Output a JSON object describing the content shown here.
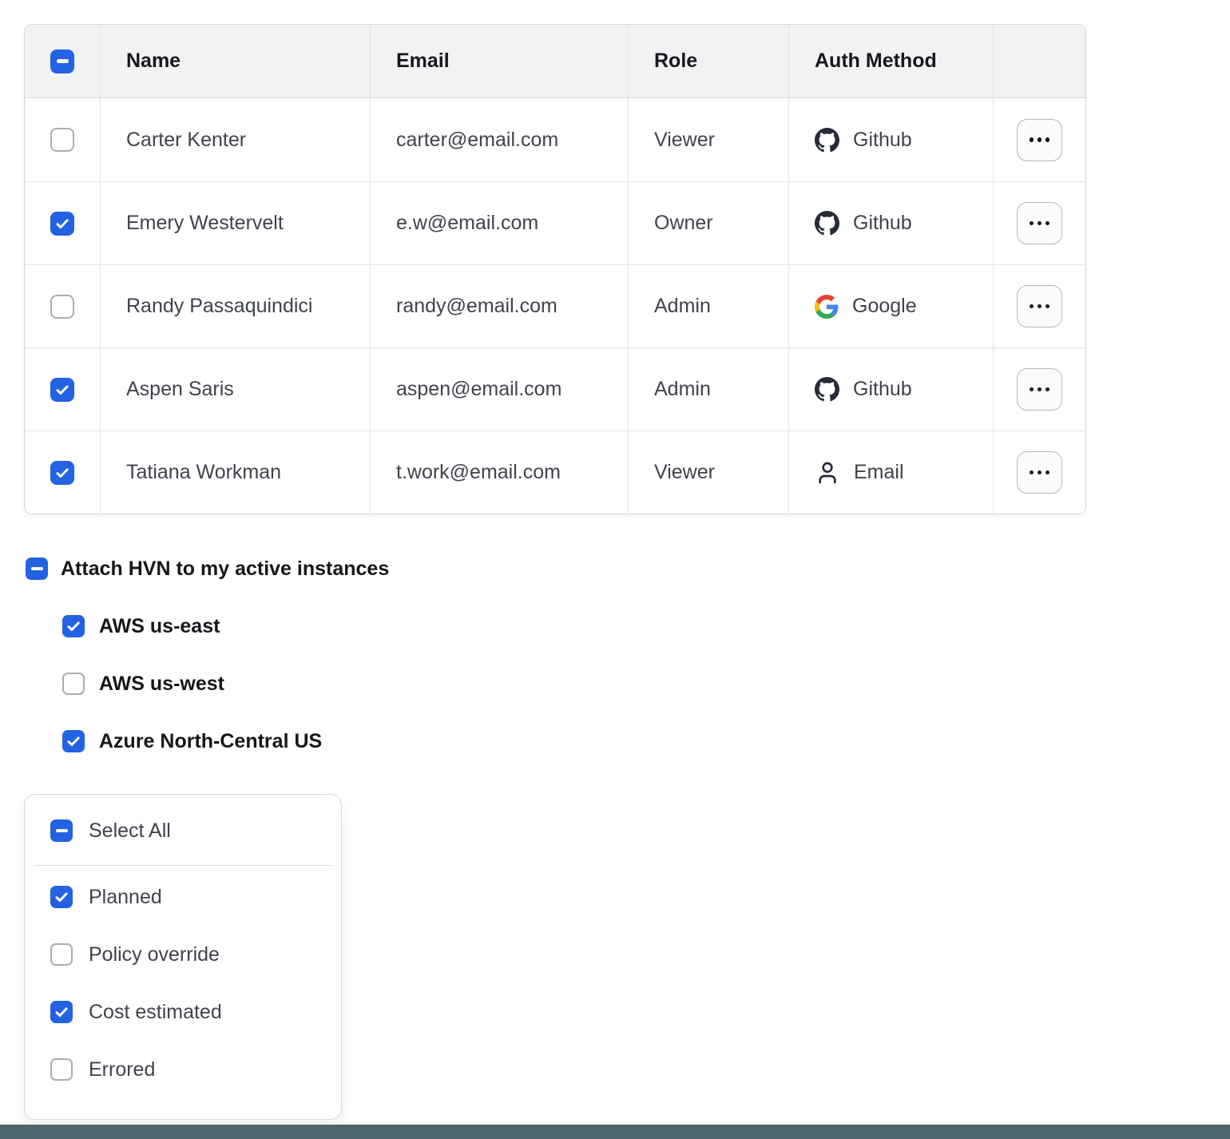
{
  "table": {
    "header_checkbox_state": "indeterminate",
    "columns": {
      "name": "Name",
      "email": "Email",
      "role": "Role",
      "auth": "Auth Method"
    },
    "rows": [
      {
        "checked": false,
        "name": "Carter Kenter",
        "email": "carter@email.com",
        "role": "Viewer",
        "auth_method": "Github",
        "auth_icon": "github-icon"
      },
      {
        "checked": true,
        "name": "Emery Westervelt",
        "email": "e.w@email.com",
        "role": "Owner",
        "auth_method": "Github",
        "auth_icon": "github-icon"
      },
      {
        "checked": false,
        "name": "Randy Passaquindici",
        "email": "randy@email.com",
        "role": "Admin",
        "auth_method": "Google",
        "auth_icon": "google-icon"
      },
      {
        "checked": true,
        "name": "Aspen Saris",
        "email": "aspen@email.com",
        "role": "Admin",
        "auth_method": "Github",
        "auth_icon": "github-icon"
      },
      {
        "checked": true,
        "name": "Tatiana Workman",
        "email": "t.work@email.com",
        "role": "Viewer",
        "auth_method": "Email",
        "auth_icon": "user-icon"
      }
    ]
  },
  "hvn_section": {
    "checkbox_state": "indeterminate",
    "label": "Attach HVN to my active instances",
    "options": [
      {
        "label": "AWS us-east",
        "checked": true
      },
      {
        "label": "AWS us-west",
        "checked": false
      },
      {
        "label": "Azure North-Central US",
        "checked": true
      }
    ]
  },
  "filter_card": {
    "select_all_state": "indeterminate",
    "select_all_label": "Select All",
    "options": [
      {
        "label": "Planned",
        "checked": true
      },
      {
        "label": "Policy override",
        "checked": false
      },
      {
        "label": "Cost estimated",
        "checked": true
      },
      {
        "label": "Errored",
        "checked": false
      }
    ]
  },
  "colors": {
    "checkbox_blue": "#2262e3",
    "header_bg": "#f1f2f4",
    "bottom_bar": "#4d666e"
  }
}
